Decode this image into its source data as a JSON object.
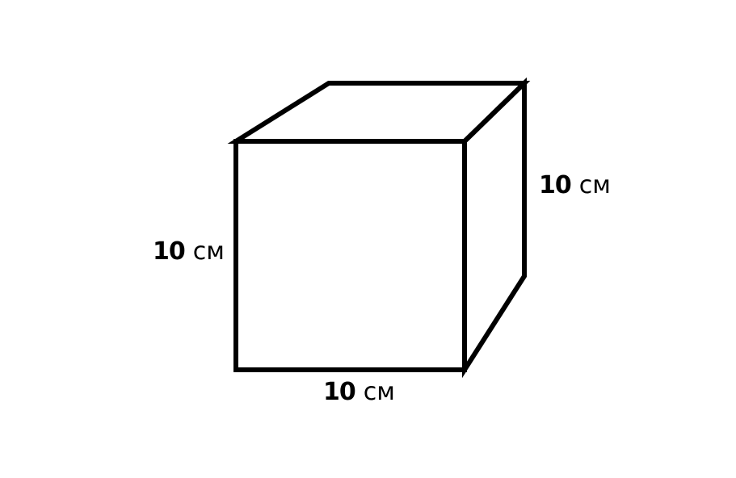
{
  "colors": {
    "stroke": "#000000",
    "background": "#ffffff"
  },
  "labels": {
    "left": {
      "value": "10",
      "unit": "см"
    },
    "right": {
      "value": "10",
      "unit": "см"
    },
    "bottom": {
      "value": "10",
      "unit": "см"
    }
  }
}
